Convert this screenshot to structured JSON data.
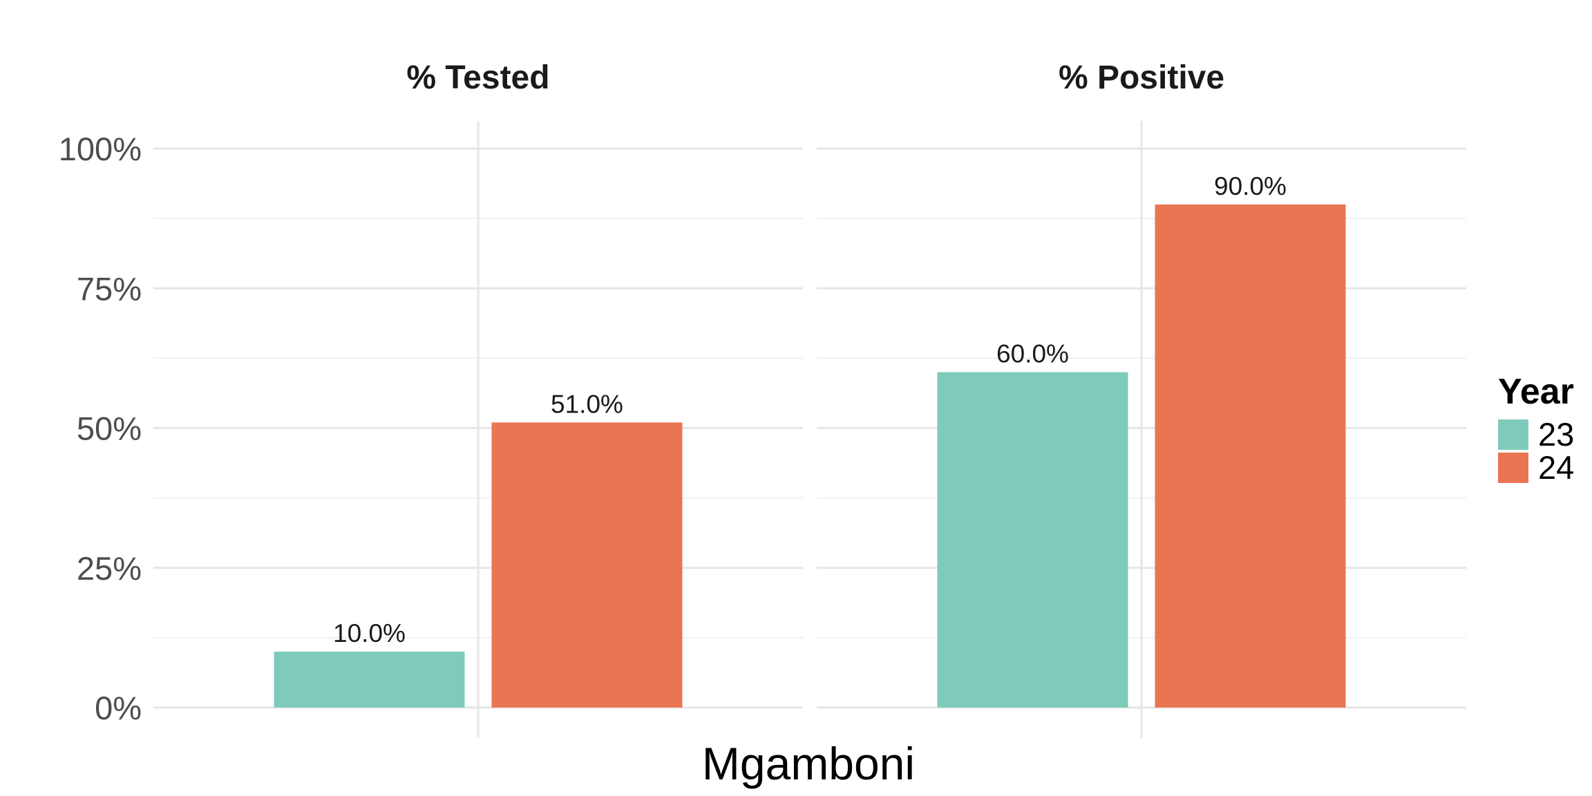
{
  "chart_data": {
    "type": "bar",
    "facets": [
      {
        "title": "% Tested",
        "series": [
          {
            "name": "23",
            "values": [
              10.0
            ],
            "labels": [
              "10.0%"
            ]
          },
          {
            "name": "24",
            "values": [
              51.0
            ],
            "labels": [
              "51.0%"
            ]
          }
        ]
      },
      {
        "title": "% Positive",
        "series": [
          {
            "name": "23",
            "values": [
              60.0
            ],
            "labels": [
              "60.0%"
            ]
          },
          {
            "name": "24",
            "values": [
              90.0
            ],
            "labels": [
              "90.0%"
            ]
          }
        ]
      }
    ],
    "categories": [
      "Mgamboni"
    ],
    "xlabel": "Mgamboni",
    "ylabel": "",
    "ylim": [
      0,
      100
    ],
    "yticks": [
      0,
      25,
      50,
      75,
      100
    ],
    "ytick_labels": [
      "0%",
      "25%",
      "50%",
      "75%",
      "100%"
    ],
    "grid": true,
    "legend": {
      "title": "Year",
      "placement": "right",
      "entries": [
        {
          "label": "23",
          "color": "#7fcbbb"
        },
        {
          "label": "24",
          "color": "#e97553"
        }
      ]
    }
  }
}
